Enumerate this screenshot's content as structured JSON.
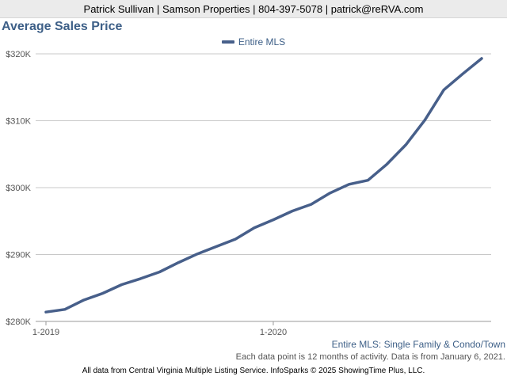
{
  "header": {
    "contact": "Patrick Sullivan | Samson Properties | 804-397-5078 | patrick@reRVA.com"
  },
  "colors": {
    "series_line": "#475f8a",
    "title": "#3d5f87",
    "grid": "#c8c8c8"
  },
  "chart_data": {
    "type": "line",
    "title": "Average Sales Price",
    "xlabel": "",
    "ylabel": "",
    "ylim": [
      280000,
      320000
    ],
    "yticks": [
      {
        "value": 280000,
        "label": "$280K"
      },
      {
        "value": 290000,
        "label": "$290K"
      },
      {
        "value": 300000,
        "label": "$300K"
      },
      {
        "value": 310000,
        "label": "$310K"
      },
      {
        "value": 320000,
        "label": "$320K"
      }
    ],
    "xticks": [
      {
        "index": 0,
        "label": "1-2019"
      },
      {
        "index": 12,
        "label": "1-2020"
      }
    ],
    "grid": true,
    "legend_position": "top-center",
    "x": [
      "1-2019",
      "2-2019",
      "3-2019",
      "4-2019",
      "5-2019",
      "6-2019",
      "7-2019",
      "8-2019",
      "9-2019",
      "10-2019",
      "11-2019",
      "12-2019",
      "1-2020",
      "2-2020",
      "3-2020",
      "4-2020",
      "5-2020",
      "6-2020",
      "7-2020",
      "8-2020",
      "9-2020",
      "10-2020",
      "11-2020",
      "12-2020"
    ],
    "series": [
      {
        "name": "Entire MLS",
        "values": [
          281400,
          281800,
          283200,
          284200,
          285500,
          286400,
          287400,
          288800,
          290100,
          291200,
          292300,
          294000,
          295200,
          296500,
          297500,
          299200,
          300500,
          301100,
          303500,
          306400,
          310100,
          314600,
          317000,
          319300
        ]
      }
    ]
  },
  "footnotes": {
    "series_description": "Entire MLS: Single Family & Condo/Town",
    "activity_note": "Each data point is 12 months of activity. Data is from January 6, 2021.",
    "source": "All data from Central Virginia Multiple Listing Service. InfoSparks © 2025 ShowingTime Plus, LLC."
  }
}
